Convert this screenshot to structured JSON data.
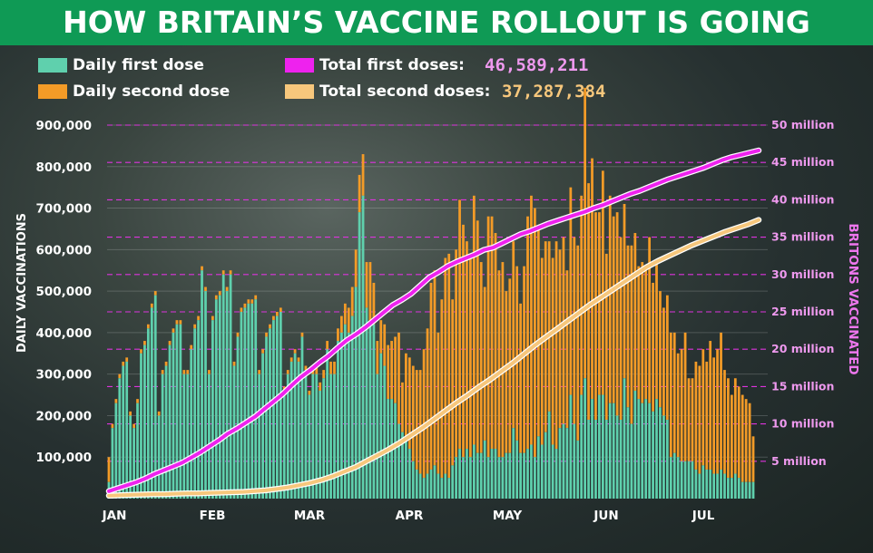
{
  "title": "HOW BRITAIN’S VACCINE ROLLOUT IS GOING",
  "colors": {
    "title_bg": "#0f9a55",
    "first_dose": "#5fd0ad",
    "second_dose": "#f39b27",
    "total_first": "#ee22ee",
    "total_second": "#f7c77c",
    "right_axis": "#ee77ee",
    "grid_right": "#dd33dd"
  },
  "legend": {
    "daily_first": "Daily first dose",
    "daily_second": "Daily second dose",
    "total_first": "Total first doses:",
    "total_first_value": "46,589,211",
    "total_second": "Total second doses:",
    "total_second_value": "37,287,384"
  },
  "chart_data": {
    "type": "bar",
    "ylabel": "DAILY VACCINATIONS",
    "y2label": "BRITONS VACCINATED",
    "ylim": [
      0,
      900000
    ],
    "y2lim": [
      0,
      50000000
    ],
    "yticks": [
      "100,000",
      "200,000",
      "300,000",
      "400,000",
      "500,000",
      "600,000",
      "700,000",
      "800,000",
      "900,000"
    ],
    "y2ticks": [
      "5 million",
      "10 million",
      "15 million",
      "20 million",
      "25 million",
      "30 million",
      "35 million",
      "40 million",
      "45 million",
      "50 million"
    ],
    "xticks": [
      "JAN",
      "FEB",
      "MAR",
      "APR",
      "MAY",
      "JUN",
      "JUL"
    ],
    "grid": "right-axis dashed",
    "series_daily_first": [
      40000,
      170000,
      230000,
      290000,
      320000,
      330000,
      200000,
      170000,
      230000,
      350000,
      370000,
      410000,
      460000,
      490000,
      200000,
      300000,
      320000,
      370000,
      400000,
      420000,
      420000,
      300000,
      300000,
      360000,
      410000,
      430000,
      550000,
      500000,
      300000,
      430000,
      480000,
      490000,
      540000,
      500000,
      540000,
      320000,
      390000,
      450000,
      460000,
      470000,
      470000,
      480000,
      300000,
      350000,
      390000,
      410000,
      430000,
      440000,
      450000,
      260000,
      300000,
      330000,
      350000,
      330000,
      390000,
      310000,
      250000,
      300000,
      300000,
      260000,
      290000,
      360000,
      300000,
      300000,
      380000,
      400000,
      420000,
      400000,
      440000,
      510000,
      690000,
      730000,
      460000,
      420000,
      420000,
      300000,
      350000,
      320000,
      240000,
      240000,
      230000,
      180000,
      160000,
      150000,
      120000,
      90000,
      70000,
      60000,
      50000,
      60000,
      70000,
      80000,
      60000,
      50000,
      60000,
      50000,
      80000,
      100000,
      120000,
      100000,
      120000,
      100000,
      130000,
      110000,
      110000,
      140000,
      100000,
      120000,
      120000,
      100000,
      100000,
      110000,
      110000,
      170000,
      140000,
      110000,
      110000,
      120000,
      130000,
      100000,
      150000,
      130000,
      160000,
      210000,
      130000,
      120000,
      170000,
      180000,
      170000,
      250000,
      180000,
      140000,
      250000,
      290000,
      190000,
      240000,
      190000,
      250000,
      250000,
      190000,
      230000,
      230000,
      200000,
      190000,
      290000,
      220000,
      180000,
      260000,
      240000,
      230000,
      240000,
      230000,
      210000,
      240000,
      220000,
      200000,
      190000,
      100000,
      110000,
      100000,
      90000,
      90000,
      90000,
      90000,
      70000,
      60000,
      80000,
      70000,
      70000,
      60000,
      60000,
      70000,
      60000,
      50000,
      50000,
      60000,
      50000,
      40000,
      40000,
      40000,
      40000
    ],
    "series_daily_second": [
      60000,
      10000,
      10000,
      10000,
      10000,
      10000,
      10000,
      10000,
      10000,
      10000,
      10000,
      10000,
      10000,
      10000,
      10000,
      10000,
      10000,
      10000,
      10000,
      10000,
      10000,
      10000,
      10000,
      10000,
      10000,
      10000,
      10000,
      10000,
      10000,
      10000,
      10000,
      10000,
      10000,
      10000,
      10000,
      10000,
      10000,
      10000,
      10000,
      10000,
      10000,
      10000,
      10000,
      10000,
      10000,
      10000,
      10000,
      10000,
      10000,
      10000,
      10000,
      10000,
      10000,
      10000,
      10000,
      10000,
      10000,
      20000,
      20000,
      20000,
      20000,
      20000,
      30000,
      30000,
      30000,
      40000,
      50000,
      60000,
      70000,
      90000,
      90000,
      100000,
      110000,
      150000,
      100000,
      80000,
      80000,
      100000,
      130000,
      140000,
      160000,
      220000,
      120000,
      200000,
      220000,
      230000,
      240000,
      250000,
      310000,
      350000,
      450000,
      470000,
      340000,
      430000,
      520000,
      540000,
      400000,
      500000,
      600000,
      560000,
      500000,
      490000,
      600000,
      560000,
      460000,
      370000,
      580000,
      560000,
      520000,
      450000,
      470000,
      390000,
      420000,
      450000,
      420000,
      360000,
      450000,
      560000,
      600000,
      600000,
      500000,
      450000,
      460000,
      410000,
      450000,
      500000,
      430000,
      450000,
      380000,
      500000,
      450000,
      470000,
      480000,
      700000,
      570000,
      580000,
      500000,
      440000,
      540000,
      400000,
      500000,
      450000,
      490000,
      440000,
      420000,
      390000,
      430000,
      380000,
      320000,
      340000,
      310000,
      400000,
      310000,
      330000,
      280000,
      260000,
      300000,
      300000,
      290000,
      250000,
      270000,
      310000,
      200000,
      200000,
      260000,
      260000,
      280000,
      260000,
      310000,
      280000,
      300000,
      330000,
      250000,
      240000,
      200000,
      230000,
      220000,
      210000,
      200000,
      190000,
      110000,
      120000,
      140000,
      120000
    ],
    "series_total_first": [
      1.0,
      1.4,
      1.8,
      2.2,
      2.7,
      3.3,
      3.8,
      4.3,
      4.8,
      5.5,
      6.2,
      7.0,
      7.8,
      8.7,
      9.4,
      10.2,
      11.0,
      12.0,
      13.0,
      14.0,
      15.2,
      16.3,
      17.2,
      18.2,
      19.1,
      20.2,
      21.2,
      22.0,
      22.9,
      23.9,
      24.9,
      25.9,
      26.6,
      27.4,
      28.5,
      29.6,
      30.3,
      31.1,
      31.7,
      32.2,
      32.7,
      33.3,
      33.6,
      34.2,
      34.8,
      35.4,
      35.8,
      36.3,
      36.8,
      37.2,
      37.6,
      38.0,
      38.4,
      38.9,
      39.3,
      39.8,
      40.3,
      40.8,
      41.2,
      41.7,
      42.2,
      42.7,
      43.1,
      43.5,
      43.9,
      44.3,
      44.8,
      45.3,
      45.7,
      46.0,
      46.3,
      46.6
    ],
    "series_total_second": [
      0.4,
      0.45,
      0.5,
      0.55,
      0.6,
      0.6,
      0.65,
      0.7,
      0.7,
      0.75,
      0.8,
      0.85,
      0.9,
      1.0,
      1.1,
      1.3,
      1.5,
      1.8,
      2.1,
      2.5,
      3.0,
      3.6,
      4.2,
      5.0,
      5.8,
      6.6,
      7.5,
      8.5,
      9.5,
      10.6,
      11.7,
      12.8,
      13.8,
      14.9,
      15.9,
      17.0,
      18.1,
      19.3,
      20.5,
      21.6,
      22.7,
      23.8,
      24.9,
      26.0,
      27.0,
      28.0,
      29.0,
      30.0,
      31.0,
      31.8,
      32.5,
      33.2,
      33.9,
      34.5,
      35.1,
      35.7,
      36.2,
      36.7,
      37.3
    ]
  }
}
